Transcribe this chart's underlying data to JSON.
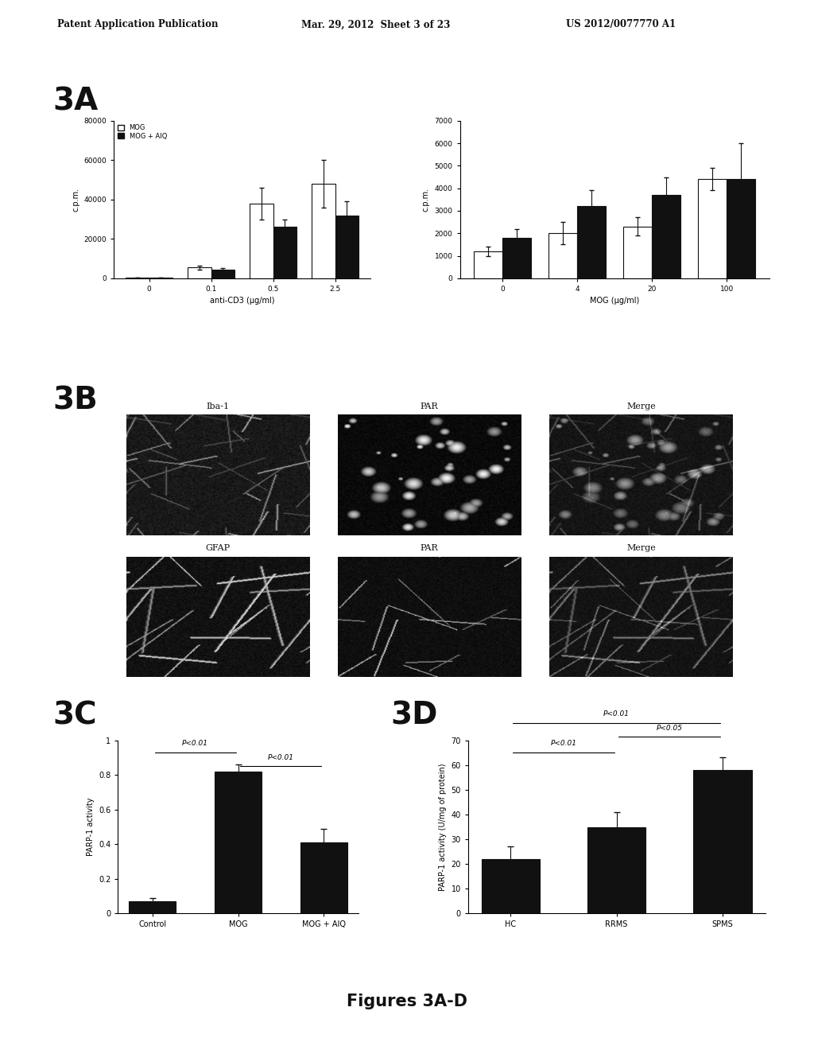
{
  "header_left": "Patent Application Publication",
  "header_mid": "Mar. 29, 2012  Sheet 3 of 23",
  "header_right": "US 2012/0077770 A1",
  "fig_label": "Figures 3A-D",
  "panel_3A_label": "3A",
  "panel_3B_label": "3B",
  "panel_3C_label": "3C",
  "panel_3D_label": "3D",
  "chart3A_left": {
    "ylabel": "c.p.m.",
    "xlabel": "anti-CD3 (μg/ml)",
    "xtick_labels": [
      "0",
      "0.1",
      "0.5",
      "2.5"
    ],
    "ylim": [
      0,
      80000
    ],
    "yticks": [
      0,
      20000,
      40000,
      60000,
      80000
    ],
    "legend": [
      "MOG",
      "MOG + AIQ"
    ],
    "mog_values": [
      400,
      5500,
      38000,
      48000
    ],
    "aiq_values": [
      300,
      4200,
      26000,
      32000
    ],
    "mog_errors": [
      100,
      1000,
      8000,
      12000
    ],
    "aiq_errors": [
      100,
      800,
      4000,
      7000
    ]
  },
  "chart3A_right": {
    "ylabel": "c.p.m.",
    "xlabel": "MOG (μg/ml)",
    "xtick_labels": [
      "0",
      "4",
      "20",
      "100"
    ],
    "ylim": [
      0,
      7000
    ],
    "yticks": [
      0,
      1000,
      2000,
      3000,
      4000,
      5000,
      6000,
      7000
    ],
    "mog_values": [
      1200,
      2000,
      2300,
      4400
    ],
    "aiq_values": [
      1800,
      3200,
      3700,
      4400
    ],
    "mog_errors": [
      200,
      500,
      400,
      500
    ],
    "aiq_errors": [
      400,
      700,
      800,
      1600
    ]
  },
  "chart3C": {
    "ylabel": "PARP-1 activity",
    "categories": [
      "Control",
      "MOG",
      "MOG + AIQ"
    ],
    "values": [
      0.07,
      0.82,
      0.41
    ],
    "errors": [
      0.02,
      0.04,
      0.08
    ],
    "ylim": [
      0,
      1
    ],
    "yticks": [
      0,
      0.2,
      0.4,
      0.6,
      0.8,
      1
    ],
    "sig1_text": "P<0.01",
    "sig2_text": "P<0.01"
  },
  "chart3D": {
    "ylabel": "PARP-1 activity (U/mg of protein)",
    "categories": [
      "HC",
      "RRMS",
      "SPMS"
    ],
    "values": [
      22,
      35,
      58
    ],
    "errors": [
      5,
      6,
      5
    ],
    "ylim": [
      0,
      70
    ],
    "yticks": [
      0,
      10,
      20,
      30,
      40,
      50,
      60,
      70
    ],
    "sig1_text": "P<0.01",
    "sig2_text": "P<0.05",
    "sig3_text": "P<0.01"
  },
  "bg_color": "#ffffff",
  "bar_white": "#ffffff",
  "bar_black": "#111111",
  "text_color": "#111111",
  "img_labels_row1": [
    "Iba-1",
    "PAR",
    "Merge"
  ],
  "img_labels_row2": [
    "GFAP",
    "PAR",
    "Merge"
  ]
}
